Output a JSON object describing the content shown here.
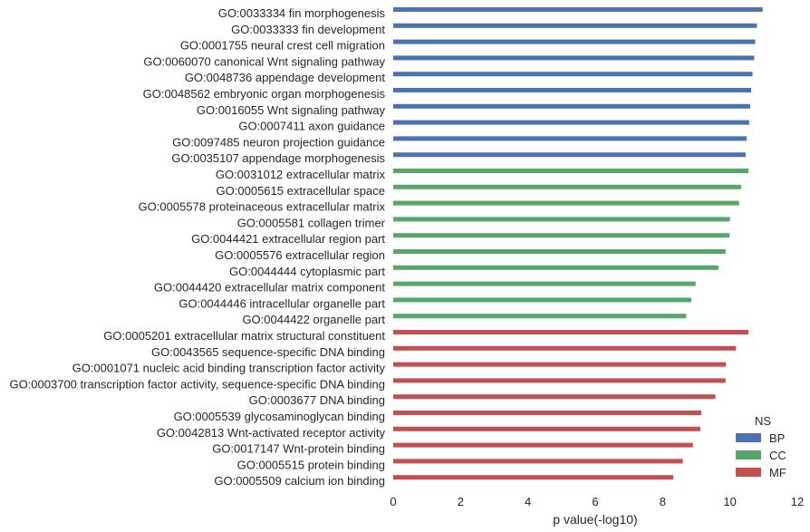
{
  "chart_data": {
    "type": "bar",
    "orientation": "horizontal",
    "xlabel": "p value(-log10)",
    "xlim": [
      0,
      12
    ],
    "xticks": [
      "0",
      "2",
      "4",
      "6",
      "8",
      "10",
      "12"
    ],
    "grid": false,
    "legend": {
      "title": "NS",
      "placement": "bottom-right"
    },
    "series": [
      {
        "name": "BP",
        "color": "#4c72b0"
      },
      {
        "name": "CC",
        "color": "#55a868"
      },
      {
        "name": "MF",
        "color": "#c44e52"
      }
    ],
    "categories": [
      "GO:0033334 fin morphogenesis",
      "GO:0033333 fin development",
      "GO:0001755 neural crest cell migration",
      "GO:0060070 canonical Wnt signaling pathway",
      "GO:0048736 appendage development",
      "GO:0048562 embryonic organ morphogenesis",
      "GO:0016055 Wnt signaling pathway",
      "GO:0007411 axon guidance",
      "GO:0097485 neuron projection guidance",
      "GO:0035107 appendage morphogenesis",
      "GO:0031012 extracellular matrix",
      "GO:0005615 extracellular space",
      "GO:0005578 proteinaceous extracellular matrix",
      "GO:0005581 collagen trimer",
      "GO:0044421 extracellular region part",
      "GO:0005576 extracellular region",
      "GO:0044444 cytoplasmic part",
      "GO:0044420 extracellular matrix component",
      "GO:0044446 intracellular organelle part",
      "GO:0044422 organelle part",
      "GO:0005201 extracellular matrix structural constituent",
      "GO:0043565 sequence-specific DNA binding",
      "GO:0001071 nucleic acid binding transcription factor activity",
      "GO:0003700 transcription factor activity, sequence-specific DNA binding",
      "GO:0003677 DNA binding",
      "GO:0005539 glycosaminoglycan binding",
      "GO:0042813 Wnt-activated receptor activity",
      "GO:0017147 Wnt-protein binding",
      "GO:0005515 protein binding",
      "GO:0005509 calcium ion binding"
    ],
    "groups": [
      "BP",
      "BP",
      "BP",
      "BP",
      "BP",
      "BP",
      "BP",
      "BP",
      "BP",
      "BP",
      "CC",
      "CC",
      "CC",
      "CC",
      "CC",
      "CC",
      "CC",
      "CC",
      "CC",
      "CC",
      "MF",
      "MF",
      "MF",
      "MF",
      "MF",
      "MF",
      "MF",
      "MF",
      "MF",
      "MF"
    ],
    "values": [
      10.97,
      10.8,
      10.75,
      10.72,
      10.67,
      10.63,
      10.6,
      10.57,
      10.5,
      10.47,
      10.55,
      10.33,
      10.27,
      10.0,
      9.99,
      9.87,
      9.66,
      8.98,
      8.85,
      8.7,
      10.55,
      10.18,
      9.88,
      9.87,
      9.57,
      9.15,
      9.12,
      8.9,
      8.6,
      8.32
    ]
  }
}
